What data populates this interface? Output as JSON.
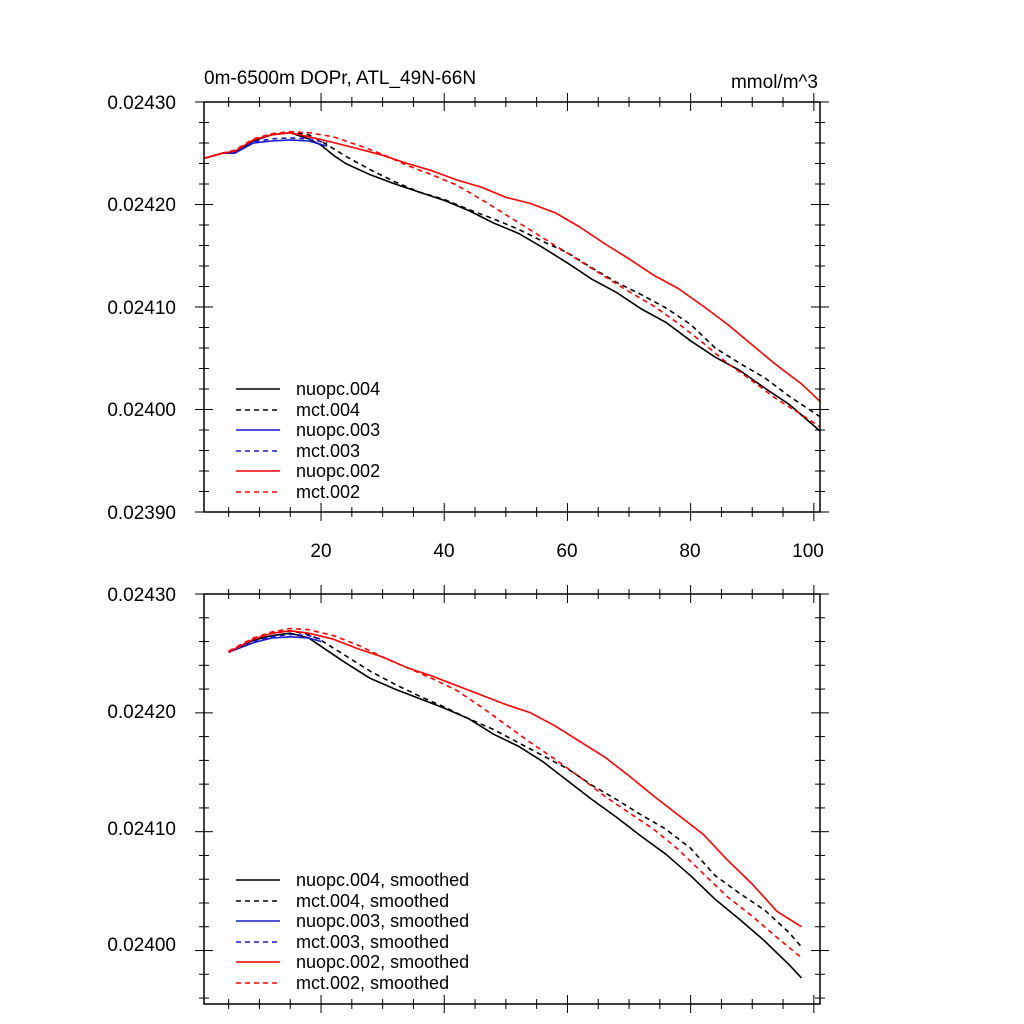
{
  "chart_data": [
    {
      "type": "line",
      "title": "0m-6500m DOPr, ATL_49N-66N",
      "units": "mmol/m^3",
      "xlabel": "",
      "ylabel": "",
      "xlim": [
        1,
        101
      ],
      "ylim": [
        0.0239,
        0.0243
      ],
      "x_ticks": [
        "20",
        "40",
        "60",
        "80",
        "100"
      ],
      "y_ticks": [
        "0.02390",
        "0.02400",
        "0.02410",
        "0.02420",
        "0.02430"
      ],
      "legend_position": "bottom-left",
      "series": [
        {
          "name": "nuopc.004",
          "color": "#000000",
          "dash": "solid",
          "points": [
            [
              1,
              0.024245
            ],
            [
              4,
              0.02425
            ],
            [
              6,
              0.024251
            ],
            [
              9,
              0.024262
            ],
            [
              12,
              0.024268
            ],
            [
              15,
              0.02427
            ],
            [
              18,
              0.024264
            ],
            [
              20,
              0.024258
            ],
            [
              22,
              0.024248
            ],
            [
              24,
              0.02424
            ],
            [
              28,
              0.024229
            ],
            [
              32,
              0.02422
            ],
            [
              36,
              0.024212
            ],
            [
              40,
              0.024204
            ],
            [
              44,
              0.024194
            ],
            [
              48,
              0.024182
            ],
            [
              52,
              0.024172
            ],
            [
              56,
              0.024158
            ],
            [
              60,
              0.024143
            ],
            [
              64,
              0.024127
            ],
            [
              68,
              0.024114
            ],
            [
              72,
              0.024098
            ],
            [
              76,
              0.024085
            ],
            [
              80,
              0.024067
            ],
            [
              84,
              0.024051
            ],
            [
              88,
              0.024038
            ],
            [
              92,
              0.024021
            ],
            [
              96,
              0.024005
            ],
            [
              101,
              0.023979
            ]
          ]
        },
        {
          "name": "mct.004",
          "color": "#000000",
          "dash": "dashed",
          "points": [
            [
              1,
              0.024245
            ],
            [
              4,
              0.02425
            ],
            [
              6,
              0.024252
            ],
            [
              9,
              0.024263
            ],
            [
              12,
              0.024269
            ],
            [
              15,
              0.024271
            ],
            [
              18,
              0.024268
            ],
            [
              20,
              0.024262
            ],
            [
              24,
              0.024247
            ],
            [
              28,
              0.024234
            ],
            [
              32,
              0.024222
            ],
            [
              36,
              0.024212
            ],
            [
              40,
              0.024205
            ],
            [
              44,
              0.024195
            ],
            [
              48,
              0.024186
            ],
            [
              52,
              0.024176
            ],
            [
              56,
              0.024164
            ],
            [
              60,
              0.024153
            ],
            [
              64,
              0.024138
            ],
            [
              68,
              0.024124
            ],
            [
              72,
              0.024112
            ],
            [
              76,
              0.024099
            ],
            [
              80,
              0.024083
            ],
            [
              84,
              0.02406
            ],
            [
              88,
              0.024045
            ],
            [
              92,
              0.024031
            ],
            [
              96,
              0.024013
            ],
            [
              101,
              0.023993
            ]
          ]
        },
        {
          "name": "nuopc.003",
          "color": "#1a1acc",
          "dash": "solid",
          "points": [
            [
              1,
              0.024245
            ],
            [
              4,
              0.02425
            ],
            [
              6,
              0.02425
            ],
            [
              9,
              0.02426
            ],
            [
              12,
              0.024262
            ],
            [
              15,
              0.024263
            ],
            [
              18,
              0.024262
            ],
            [
              21,
              0.024257
            ]
          ]
        },
        {
          "name": "mct.003",
          "color": "#1a1acc",
          "dash": "dashed",
          "points": [
            [
              1,
              0.024245
            ],
            [
              4,
              0.02425
            ],
            [
              6,
              0.024251
            ],
            [
              9,
              0.024261
            ],
            [
              12,
              0.024264
            ],
            [
              15,
              0.024265
            ],
            [
              18,
              0.024264
            ],
            [
              21,
              0.02426
            ]
          ]
        },
        {
          "name": "nuopc.002",
          "color": "#ff0000",
          "dash": "solid",
          "points": [
            [
              1,
              0.024245
            ],
            [
              4,
              0.02425
            ],
            [
              6,
              0.024252
            ],
            [
              9,
              0.024263
            ],
            [
              12,
              0.024268
            ],
            [
              15,
              0.02427
            ],
            [
              18,
              0.024266
            ],
            [
              21,
              0.024262
            ],
            [
              25,
              0.024256
            ],
            [
              30,
              0.024248
            ],
            [
              34,
              0.02424
            ],
            [
              38,
              0.024233
            ],
            [
              42,
              0.024224
            ],
            [
              46,
              0.024217
            ],
            [
              50,
              0.024207
            ],
            [
              54,
              0.024201
            ],
            [
              58,
              0.024192
            ],
            [
              62,
              0.024178
            ],
            [
              66,
              0.024162
            ],
            [
              70,
              0.024147
            ],
            [
              74,
              0.024131
            ],
            [
              78,
              0.024118
            ],
            [
              82,
              0.024101
            ],
            [
              86,
              0.024083
            ],
            [
              90,
              0.024063
            ],
            [
              94,
              0.024043
            ],
            [
              98,
              0.024025
            ],
            [
              101,
              0.024008
            ]
          ]
        },
        {
          "name": "mct.002",
          "color": "#ff0000",
          "dash": "dashed",
          "points": [
            [
              1,
              0.024245
            ],
            [
              4,
              0.02425
            ],
            [
              6,
              0.024253
            ],
            [
              9,
              0.024264
            ],
            [
              12,
              0.024269
            ],
            [
              15,
              0.024271
            ],
            [
              18,
              0.02427
            ],
            [
              22,
              0.024266
            ],
            [
              26,
              0.024258
            ],
            [
              30,
              0.024249
            ],
            [
              34,
              0.024238
            ],
            [
              38,
              0.024229
            ],
            [
              42,
              0.024219
            ],
            [
              46,
              0.024205
            ],
            [
              50,
              0.02419
            ],
            [
              54,
              0.024175
            ],
            [
              58,
              0.02416
            ],
            [
              62,
              0.024145
            ],
            [
              66,
              0.02413
            ],
            [
              70,
              0.024115
            ],
            [
              74,
              0.024101
            ],
            [
              78,
              0.024084
            ],
            [
              82,
              0.024065
            ],
            [
              86,
              0.024045
            ],
            [
              90,
              0.024028
            ],
            [
              94,
              0.02401
            ],
            [
              98,
              0.023995
            ],
            [
              101,
              0.023983
            ]
          ]
        }
      ]
    },
    {
      "type": "line",
      "title": "",
      "xlabel": "",
      "ylabel": "",
      "xlim": [
        1,
        101
      ],
      "ylim": [
        0.023955,
        0.0243
      ],
      "y_ticks": [
        "0.02400",
        "0.02410",
        "0.02420",
        "0.02430"
      ],
      "legend_position": "bottom-left",
      "series": [
        {
          "name": "nuopc.004, smoothed",
          "color": "#000000",
          "dash": "solid",
          "points": [
            [
              5,
              0.024251
            ],
            [
              9,
              0.024261
            ],
            [
              12,
              0.024265
            ],
            [
              15,
              0.024267
            ],
            [
              18,
              0.024263
            ],
            [
              20,
              0.024256
            ],
            [
              24,
              0.024242
            ],
            [
              28,
              0.024229
            ],
            [
              32,
              0.02422
            ],
            [
              36,
              0.024212
            ],
            [
              40,
              0.024204
            ],
            [
              44,
              0.024195
            ],
            [
              48,
              0.024182
            ],
            [
              52,
              0.024172
            ],
            [
              56,
              0.024159
            ],
            [
              60,
              0.024143
            ],
            [
              64,
              0.024127
            ],
            [
              68,
              0.024112
            ],
            [
              72,
              0.024096
            ],
            [
              76,
              0.024081
            ],
            [
              80,
              0.024063
            ],
            [
              84,
              0.024043
            ],
            [
              88,
              0.024026
            ],
            [
              92,
              0.024008
            ],
            [
              96,
              0.023988
            ],
            [
              98,
              0.023977
            ]
          ]
        },
        {
          "name": "mct.004, smoothed",
          "color": "#000000",
          "dash": "dashed",
          "points": [
            [
              5,
              0.024251
            ],
            [
              9,
              0.024262
            ],
            [
              12,
              0.024267
            ],
            [
              15,
              0.024269
            ],
            [
              18,
              0.024266
            ],
            [
              20,
              0.024261
            ],
            [
              24,
              0.024248
            ],
            [
              28,
              0.024235
            ],
            [
              32,
              0.024224
            ],
            [
              36,
              0.024214
            ],
            [
              40,
              0.024205
            ],
            [
              44,
              0.024195
            ],
            [
              48,
              0.024186
            ],
            [
              52,
              0.024175
            ],
            [
              56,
              0.024164
            ],
            [
              60,
              0.024153
            ],
            [
              64,
              0.024139
            ],
            [
              68,
              0.024127
            ],
            [
              72,
              0.024114
            ],
            [
              76,
              0.024102
            ],
            [
              80,
              0.024086
            ],
            [
              84,
              0.024063
            ],
            [
              88,
              0.024048
            ],
            [
              92,
              0.024034
            ],
            [
              96,
              0.024015
            ],
            [
              98,
              0.024003
            ]
          ]
        },
        {
          "name": "nuopc.003, smoothed",
          "color": "#1a1acc",
          "dash": "solid",
          "points": [
            [
              5,
              0.024251
            ],
            [
              9,
              0.024259
            ],
            [
              12,
              0.024263
            ],
            [
              15,
              0.024264
            ],
            [
              18,
              0.024263
            ],
            [
              20,
              0.02426
            ]
          ]
        },
        {
          "name": "mct.003, smoothed",
          "color": "#1a1acc",
          "dash": "dashed",
          "points": [
            [
              5,
              0.024251
            ],
            [
              9,
              0.02426
            ],
            [
              12,
              0.024264
            ],
            [
              15,
              0.024266
            ],
            [
              18,
              0.024265
            ],
            [
              20,
              0.024262
            ]
          ]
        },
        {
          "name": "nuopc.002, smoothed",
          "color": "#ff0000",
          "dash": "solid",
          "points": [
            [
              5,
              0.024251
            ],
            [
              9,
              0.024262
            ],
            [
              12,
              0.024267
            ],
            [
              15,
              0.024269
            ],
            [
              18,
              0.024267
            ],
            [
              22,
              0.024262
            ],
            [
              26,
              0.024254
            ],
            [
              30,
              0.024247
            ],
            [
              34,
              0.024238
            ],
            [
              38,
              0.024231
            ],
            [
              42,
              0.024223
            ],
            [
              46,
              0.024215
            ],
            [
              50,
              0.024207
            ],
            [
              54,
              0.0242
            ],
            [
              58,
              0.024189
            ],
            [
              62,
              0.024176
            ],
            [
              66,
              0.024163
            ],
            [
              70,
              0.024147
            ],
            [
              74,
              0.02413
            ],
            [
              78,
              0.024114
            ],
            [
              82,
              0.024098
            ],
            [
              86,
              0.024076
            ],
            [
              90,
              0.024056
            ],
            [
              94,
              0.024033
            ],
            [
              98,
              0.02402
            ]
          ]
        },
        {
          "name": "mct.002, smoothed",
          "color": "#ff0000",
          "dash": "dashed",
          "points": [
            [
              5,
              0.024252
            ],
            [
              9,
              0.024263
            ],
            [
              12,
              0.024268
            ],
            [
              15,
              0.024271
            ],
            [
              18,
              0.02427
            ],
            [
              22,
              0.024265
            ],
            [
              26,
              0.024257
            ],
            [
              30,
              0.024247
            ],
            [
              34,
              0.024238
            ],
            [
              38,
              0.024229
            ],
            [
              42,
              0.024219
            ],
            [
              46,
              0.024205
            ],
            [
              50,
              0.02419
            ],
            [
              54,
              0.024175
            ],
            [
              58,
              0.024161
            ],
            [
              62,
              0.024146
            ],
            [
              66,
              0.02413
            ],
            [
              70,
              0.024116
            ],
            [
              74,
              0.024102
            ],
            [
              78,
              0.024085
            ],
            [
              82,
              0.024065
            ],
            [
              86,
              0.024045
            ],
            [
              90,
              0.024029
            ],
            [
              94,
              0.024011
            ],
            [
              98,
              0.023994
            ]
          ]
        }
      ]
    }
  ]
}
